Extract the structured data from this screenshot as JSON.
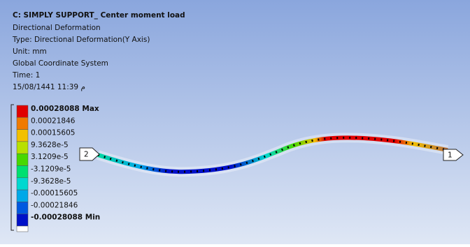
{
  "header": {
    "title": "C: SIMPLY SUPPORT_ Center moment load",
    "lines": [
      "Directional Deformation",
      "Type: Directional Deformation(Y Axis)",
      "Unit: mm",
      "Global Coordinate System",
      "Time: 1",
      "15/08/1441 11:39  م"
    ]
  },
  "legend": {
    "entries": [
      {
        "label": "0.00028088 Max",
        "color": "#e00000"
      },
      {
        "label": "0.00021846",
        "color": "#f07a00"
      },
      {
        "label": "0.00015605",
        "color": "#f2c000"
      },
      {
        "label": "9.3628e-5",
        "color": "#b8e000"
      },
      {
        "label": "3.1209e-5",
        "color": "#48d800"
      },
      {
        "label": "-3.1209e-5",
        "color": "#00e070"
      },
      {
        "label": "-9.3628e-5",
        "color": "#00d8d0"
      },
      {
        "label": "-0.00015605",
        "color": "#00a8e8"
      },
      {
        "label": "-0.00021846",
        "color": "#0058e0"
      },
      {
        "label": "-0.00028088 Min",
        "color": "#0010c8"
      }
    ]
  },
  "markers": [
    {
      "label": "2"
    },
    {
      "label": "1"
    }
  ]
}
